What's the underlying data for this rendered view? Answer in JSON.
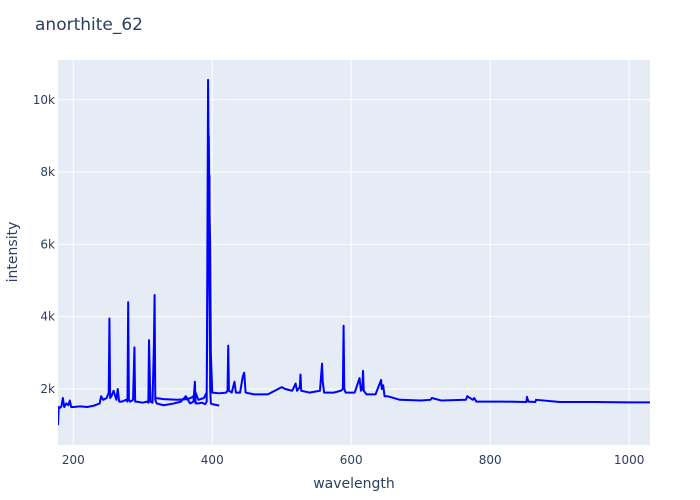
{
  "chart_data": {
    "type": "line",
    "title": "anorthite_62",
    "x_label": "wavelength",
    "y_label": "intensity",
    "xlim": [
      178,
      1030
    ],
    "ylim": [
      450,
      11100
    ],
    "xticks": [
      200,
      400,
      600,
      800,
      1000
    ],
    "yticks": [
      {
        "value": 2000,
        "label": "2k"
      },
      {
        "value": 4000,
        "label": "4k"
      },
      {
        "value": 6000,
        "label": "6k"
      },
      {
        "value": 8000,
        "label": "8k"
      },
      {
        "value": 10000,
        "label": "10k"
      }
    ],
    "grid": true,
    "x": [
      178,
      179,
      181,
      183,
      185,
      187,
      190,
      193,
      195,
      197,
      200,
      210,
      220,
      230,
      238,
      240,
      243,
      248,
      251,
      252,
      253,
      255,
      258,
      262,
      264,
      266,
      270,
      276,
      278,
      279,
      280,
      282,
      286,
      288,
      289,
      291,
      300,
      306,
      308,
      309,
      311,
      314,
      316,
      317,
      318,
      320,
      330,
      345,
      355,
      362,
      368,
      373,
      375,
      376,
      380,
      385,
      390,
      392,
      393,
      394,
      395,
      396,
      397,
      398,
      400,
      405,
      410,
      null,
      318,
      330,
      350,
      365,
      372,
      376,
      380,
      388,
      392,
      393,
      394,
      395,
      396,
      397,
      398,
      400,
      410,
      420,
      422,
      423,
      424,
      428,
      432,
      434,
      440,
      444,
      446,
      448,
      460,
      480,
      500,
      505,
      515,
      520,
      522,
      526,
      527,
      528,
      540,
      555,
      558,
      559,
      561,
      575,
      585,
      588,
      589,
      590,
      592,
      605,
      612,
      614,
      616,
      617,
      618,
      622,
      635,
      643,
      644,
      646,
      648,
      652,
      670,
      700,
      714,
      716,
      730,
      765,
      767,
      775,
      777,
      780,
      820,
      852,
      853,
      855,
      865,
      866,
      900,
      950,
      1000,
      1030
    ],
    "series": [
      {
        "color": "#0000ff",
        "values": [
          1000,
          1500,
          1480,
          1520,
          1750,
          1500,
          1600,
          1550,
          1680,
          1500,
          1500,
          1520,
          1500,
          1540,
          1600,
          1800,
          1700,
          1750,
          1900,
          3950,
          1750,
          1800,
          1950,
          1700,
          2000,
          1650,
          1650,
          1700,
          1650,
          4400,
          1700,
          1650,
          1700,
          3150,
          1650,
          1650,
          1620,
          1650,
          1620,
          3350,
          1650,
          1620,
          3200,
          4600,
          1700,
          1600,
          1550,
          1600,
          1650,
          1800,
          1600,
          1650,
          2200,
          1600,
          1600,
          1620,
          1580,
          1650,
          6000,
          10550,
          8000,
          7900,
          2000,
          1600,
          1580,
          1560,
          1540,
          null,
          1750,
          1720,
          1700,
          1720,
          1780,
          1900,
          1700,
          1750,
          1900,
          4000,
          5500,
          9000,
          7000,
          6000,
          3000,
          1900,
          1880,
          1900,
          1950,
          3200,
          1950,
          1900,
          2200,
          1900,
          1900,
          2350,
          2450,
          1900,
          1850,
          1850,
          2050,
          2000,
          1950,
          2150,
          1950,
          2050,
          2400,
          1950,
          1900,
          1950,
          2700,
          2200,
          1900,
          1900,
          1950,
          2000,
          3750,
          2000,
          1900,
          1900,
          2300,
          1950,
          2000,
          2500,
          1950,
          1850,
          1850,
          2250,
          2000,
          2100,
          1800,
          1800,
          1700,
          1680,
          1700,
          1750,
          1680,
          1700,
          1800,
          1700,
          1750,
          1650,
          1650,
          1640,
          1780,
          1650,
          1640,
          1700,
          1640,
          1640,
          1630,
          1630
        ]
      }
    ]
  }
}
